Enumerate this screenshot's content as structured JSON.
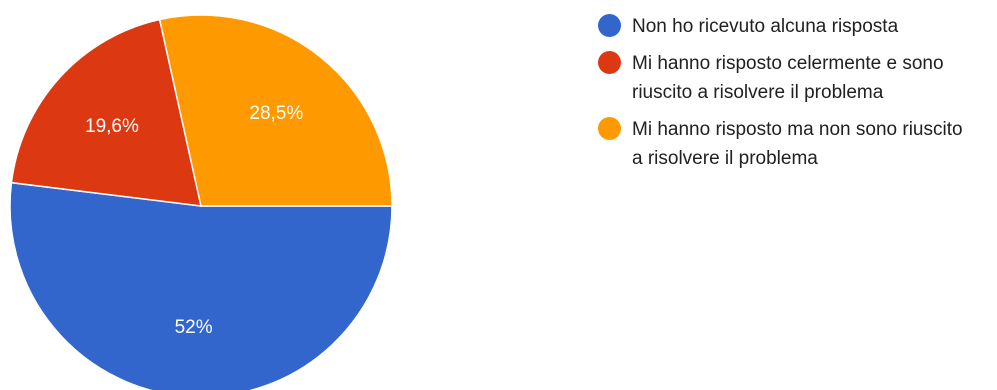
{
  "chart_data": {
    "type": "pie",
    "title": "",
    "legend_position": "right",
    "series": [
      {
        "values": [
          52,
          19.6,
          28.5
        ],
        "categories": [
          "Non ho ricevuto alcuna risposta",
          "Mi hanno risposto celermente e sono riuscito a risolvere il problema",
          "Mi hanno risposto ma non sono riuscito a risolvere il problema"
        ]
      }
    ],
    "data_labels": [
      "52%",
      "19,6%",
      "28,5%"
    ],
    "colors": [
      "#3366cc",
      "#dc3912",
      "#ff9900"
    ]
  }
}
